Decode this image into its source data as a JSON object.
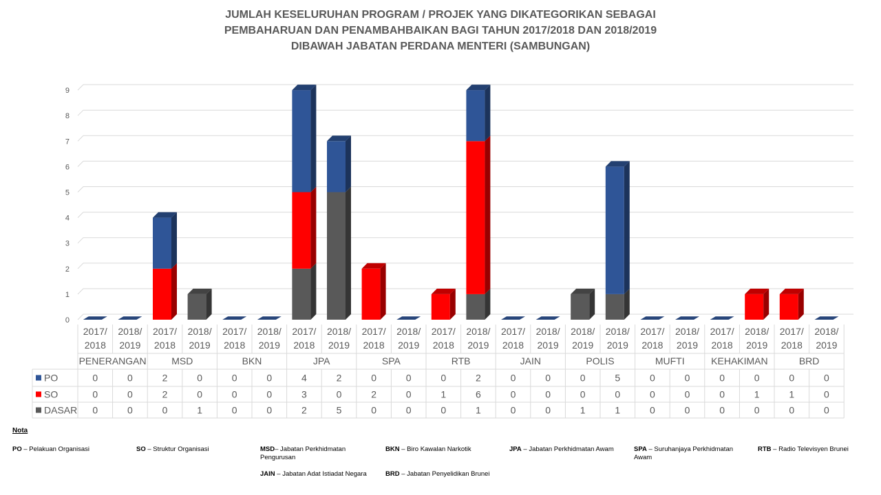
{
  "title_lines": [
    "JUMLAH KESELURUHAN PROGRAM / PROJEK YANG DIKATEGORIKAN SEBAGAI",
    "PEMBAHARUAN DAN PENAMBAHBAIKAN BAGI TAHUN 2017/2018 DAN 2018/2019",
    "DIBAWAH JABATAN PERDANA MENTERI (SAMBUNGAN)"
  ],
  "chart_data": {
    "type": "bar",
    "stacked": true,
    "three_d": true,
    "ylim": [
      0,
      9
    ],
    "yticks": [
      0,
      1,
      2,
      3,
      4,
      5,
      6,
      7,
      8,
      9
    ],
    "grid": true,
    "groups": [
      "PENERANGAN",
      "MSD",
      "BKN",
      "JPA",
      "SPA",
      "RTB",
      "JAIN",
      "POLIS",
      "MUFTI",
      "KEHAKIMAN",
      "BRD"
    ],
    "categories": [
      [
        "2017/",
        "2018"
      ],
      [
        "2018/",
        "2019"
      ],
      [
        "2017/",
        "2018"
      ],
      [
        "2018/",
        "2019"
      ],
      [
        "2017/",
        "2018"
      ],
      [
        "2018/",
        "2019"
      ],
      [
        "2017/",
        "2018"
      ],
      [
        "2018/",
        "2019"
      ],
      [
        "2017/",
        "2018"
      ],
      [
        "2018/",
        "2019"
      ],
      [
        "2017/",
        "2018"
      ],
      [
        "2018/",
        "2019"
      ],
      [
        "2017/",
        "2018"
      ],
      [
        "2018/",
        "2019"
      ],
      [
        "2018/",
        "2019"
      ],
      [
        "2018/",
        "2019"
      ],
      [
        "2017/",
        "2018"
      ],
      [
        "2018/",
        "2019"
      ],
      [
        "2017/",
        "2018"
      ],
      [
        "2018/",
        "2019"
      ],
      [
        "2017/",
        "2018"
      ],
      [
        "2018/",
        "2019"
      ]
    ],
    "series": [
      {
        "name": "PO",
        "color": "#2f5597",
        "values": [
          0,
          0,
          2,
          0,
          0,
          0,
          4,
          2,
          0,
          0,
          0,
          2,
          0,
          0,
          0,
          5,
          0,
          0,
          0,
          0,
          0,
          0
        ]
      },
      {
        "name": "SO",
        "color": "#ff0000",
        "values": [
          0,
          0,
          2,
          0,
          0,
          0,
          3,
          0,
          2,
          0,
          1,
          6,
          0,
          0,
          0,
          0,
          0,
          0,
          0,
          1,
          1,
          0
        ]
      },
      {
        "name": "DASAR",
        "color": "#595959",
        "values": [
          0,
          0,
          0,
          1,
          0,
          0,
          2,
          5,
          0,
          0,
          0,
          1,
          0,
          0,
          1,
          1,
          0,
          0,
          0,
          0,
          0,
          0
        ]
      }
    ]
  },
  "nota": {
    "title": "Nota",
    "items": [
      {
        "abbr": "PO",
        "text": " – Pelakuan Organisasi"
      },
      {
        "abbr": "SO",
        "text": " – Struktur Organisasi"
      },
      {
        "abbr": "MSD",
        "text": "– Jabatan Perkhidmatan Pengurusan"
      },
      {
        "abbr": "BKN",
        "text": " – Biro Kawalan Narkotik"
      },
      {
        "abbr": "JPA",
        "text": " – Jabatan Perkhidmatan Awam"
      },
      {
        "abbr": "SPA",
        "text": " – Suruhanjaya Perkhidmatan Awam"
      },
      {
        "abbr": "RTB",
        "text": " – Radio Televisyen Brunei"
      },
      {
        "abbr": "JAIN",
        "text": " – Jabatan Adat Istiadat Negara"
      },
      {
        "abbr": "BRD",
        "text": " – Jabatan Penyelidikan Brunei"
      }
    ]
  }
}
